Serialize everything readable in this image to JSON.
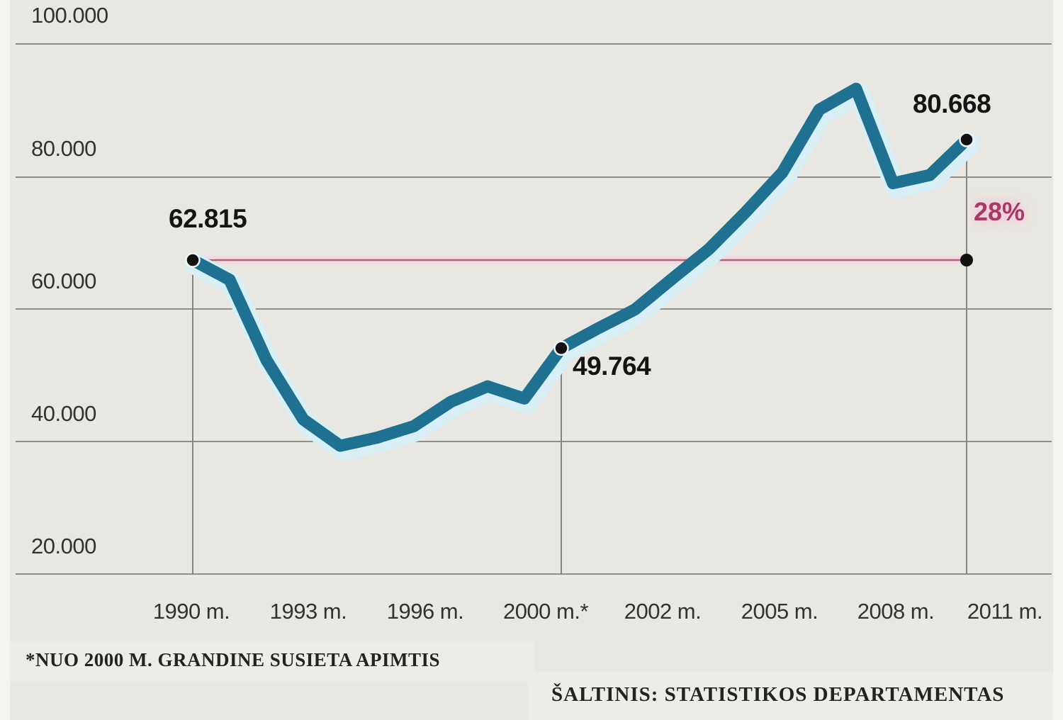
{
  "chart": {
    "y_axis_ticks": [
      "100.000",
      "80.000",
      "60.000",
      "40.000",
      "20.000"
    ],
    "x_axis_ticks": [
      "1990 m.",
      "1993 m.",
      "1996 m.",
      "2000 m.*",
      "2002 m.",
      "2005 m.",
      "2008 m.",
      "2011 m."
    ],
    "annotations": {
      "value_1990": "62.815",
      "value_2000": "49.764",
      "value_2011": "80.668",
      "change_pct": "28%"
    },
    "footnote": "*NUO 2000 M. GRANDINE SUSIETA APIMTIS",
    "source": "ŠALTINIS: STATISTIKOS DEPARTAMENTAS",
    "colors": {
      "line": "#1e7191",
      "line_halo": "#d8eff5",
      "reference_line": "#a8677a",
      "reference_halo": "#f4d9e2",
      "percent_text": "#a93767",
      "background": "#e8e7e1",
      "grid": "#8f8f89",
      "marker": "#85857f",
      "dot": "#111111"
    }
  },
  "chart_data": {
    "type": "line",
    "x": [
      1990,
      1991,
      1992,
      1993,
      1994,
      1995,
      1996,
      1997,
      1998,
      1999,
      2000,
      2001,
      2002,
      2003,
      2004,
      2005,
      2006,
      2007,
      2008,
      2009,
      2010,
      2011
    ],
    "values": [
      62815,
      59900,
      48000,
      39200,
      35300,
      36500,
      38200,
      41800,
      44100,
      42300,
      49764,
      52700,
      55500,
      60000,
      64400,
      69900,
      75800,
      85100,
      88200,
      74200,
      75400,
      80668
    ],
    "labeled_points": [
      {
        "year": 1990,
        "value": 62815,
        "label": "62.815"
      },
      {
        "year": 2000,
        "value": 49764,
        "label": "49.764"
      },
      {
        "year": 2011,
        "value": 80668,
        "label": "80.668"
      }
    ],
    "change_annotation": {
      "from_year": 1990,
      "to_year": 2011,
      "label": "28%"
    },
    "title": "",
    "xlabel": "",
    "ylabel": "",
    "y_ticks": [
      20000,
      40000,
      60000,
      80000,
      100000
    ],
    "ylim": [
      15000,
      106000
    ],
    "grid": true,
    "legend": false
  }
}
